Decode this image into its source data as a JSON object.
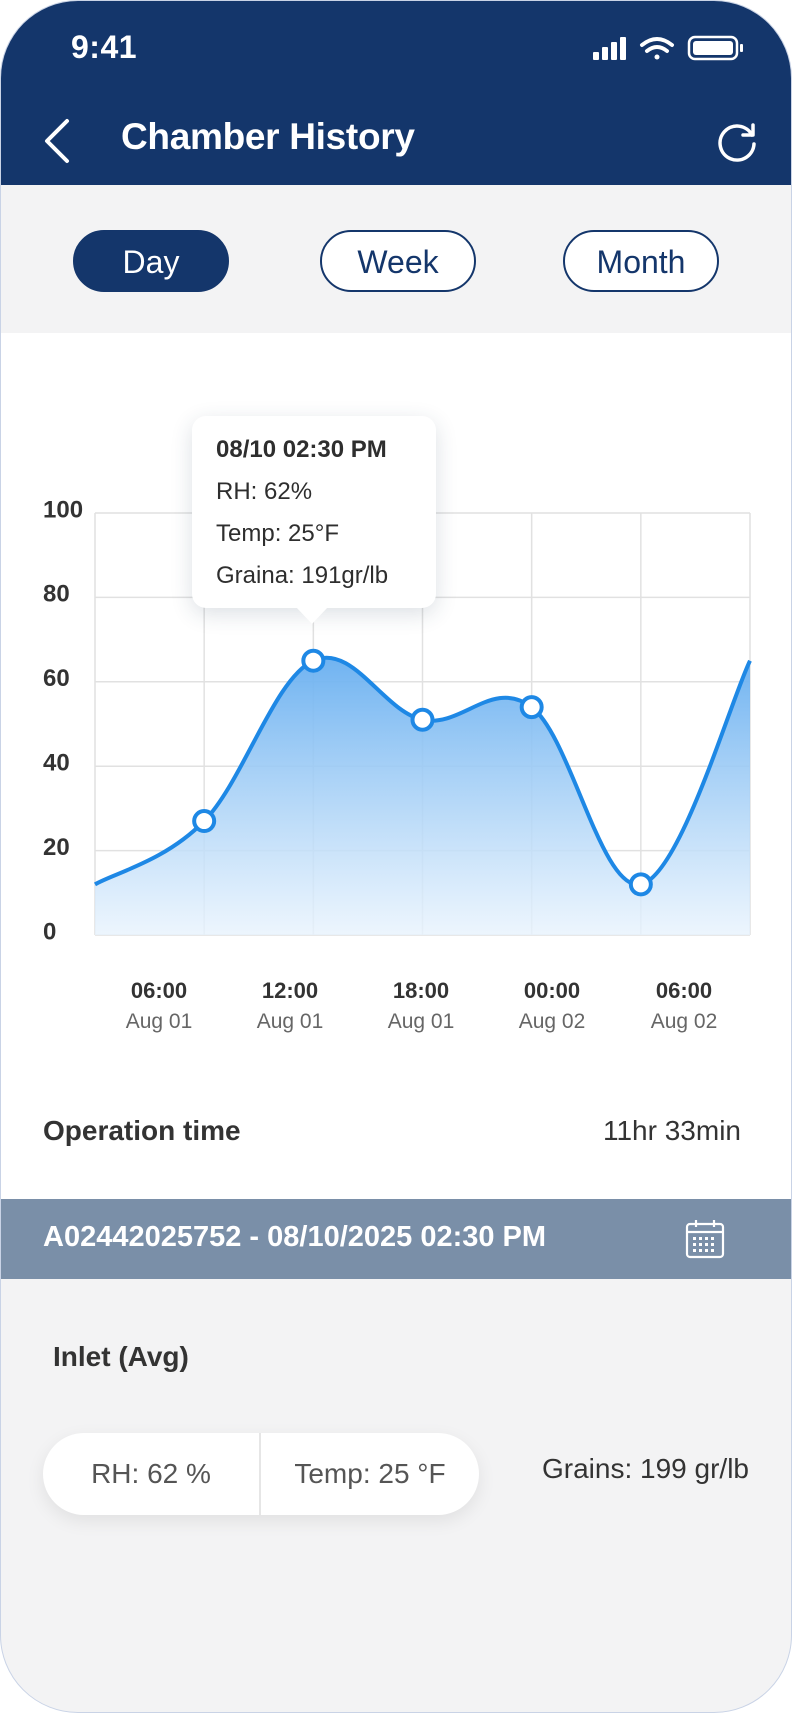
{
  "status_bar": {
    "time": "9:41"
  },
  "header": {
    "title": "Chamber History"
  },
  "tabs": [
    {
      "label": "Day",
      "active": true
    },
    {
      "label": "Week",
      "active": false
    },
    {
      "label": "Month",
      "active": false
    }
  ],
  "tooltip": {
    "title": "08/10 02:30 PM",
    "rh": "RH: 62%",
    "temp": "Temp: 25°F",
    "grains": "Graina: 191gr/lb"
  },
  "chart_data": {
    "type": "area",
    "ylim": [
      0,
      100
    ],
    "y_ticks": [
      "100",
      "80",
      "60",
      "40",
      "20",
      "0"
    ],
    "x_ticks": [
      {
        "time": "06:00",
        "date": "Aug 01"
      },
      {
        "time": "12:00",
        "date": "Aug 01"
      },
      {
        "time": "18:00",
        "date": "Aug 01"
      },
      {
        "time": "00:00",
        "date": "Aug 02"
      },
      {
        "time": "06:00",
        "date": "Aug 02"
      }
    ],
    "points": [
      {
        "x": 0,
        "y": 12,
        "marker": false
      },
      {
        "x": 1,
        "y": 27,
        "marker": true
      },
      {
        "x": 2,
        "y": 65,
        "marker": true
      },
      {
        "x": 3,
        "y": 51,
        "marker": true
      },
      {
        "x": 4,
        "y": 54,
        "marker": true
      },
      {
        "x": 5,
        "y": 12,
        "marker": true
      },
      {
        "x": 6,
        "y": 65,
        "marker": false
      }
    ],
    "grid": true,
    "line_color": "#1e88e5"
  },
  "operation": {
    "label": "Operation time",
    "value": "11hr 33min"
  },
  "record": {
    "label": "A02442025752 - 08/10/2025 02:30 PM"
  },
  "inlet": {
    "title": "Inlet (Avg)",
    "rh": "RH: 62 %",
    "temp": "Temp: 25 °F",
    "grains": "Grains: 199 gr/lb"
  },
  "colors": {
    "primary": "#14366b",
    "record_bar": "#7a8fa8",
    "accent": "#1e88e5"
  }
}
